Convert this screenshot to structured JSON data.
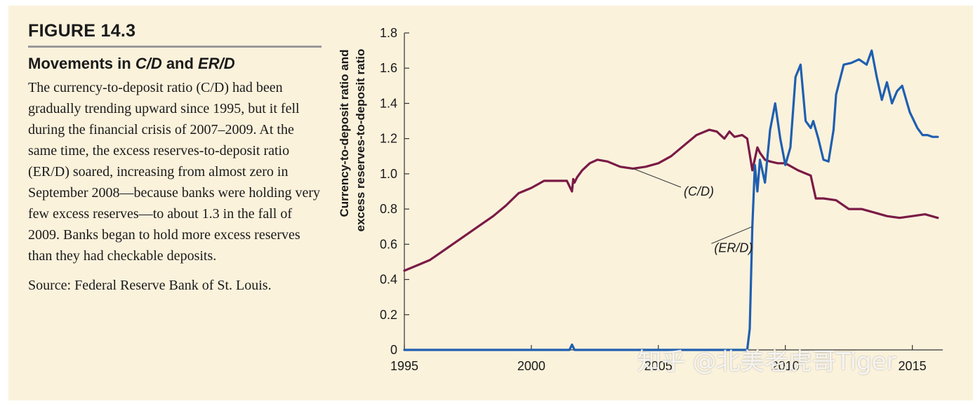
{
  "figure": {
    "label": "FIGURE 14.3",
    "title_prefix": "Movements in ",
    "title_cd": "C/D",
    "title_and": " and ",
    "title_erd": "ER/D",
    "body": "The currency-to-deposit ratio (C/D) had been gradually trending upward since 1995, but it fell during the financial crisis of 2007–2009. At the same time, the excess reserves-to-deposit ratio (ER/D) soared, increasing from almost zero in September 2008—because banks were holding very few excess reserves—to about 1.3 in the fall of 2009. Banks began to hold more excess reserves than they had checkable deposits.",
    "source": "Source: Federal Reserve Bank of St. Louis."
  },
  "watermark": "知乎 @北美老虎哥Tiger",
  "colors": {
    "cd": "#7a1a46",
    "erd": "#1f5fb0",
    "background": "#fbf2dc"
  },
  "chart_data": {
    "type": "line",
    "ylabel_line1": "Currency-to-deposit ratio and",
    "ylabel_line2": "excess reserves-to-deposit ratio",
    "xlim": [
      1995,
      2016.2
    ],
    "ylim": [
      0,
      1.8
    ],
    "yticks": [
      0,
      0.2,
      0.4,
      0.6,
      0.8,
      1.0,
      1.2,
      1.4,
      1.6,
      1.8
    ],
    "ytick_labels": [
      "0",
      "0.2",
      "0.4",
      "0.6",
      "0.8",
      "1.0",
      "1.2",
      "1.4",
      "1.6",
      "1.8"
    ],
    "xticks": [
      1995,
      2000,
      2005,
      2010,
      2015
    ],
    "xtick_labels": [
      "1995",
      "2000",
      "2005",
      "2010",
      "2015"
    ],
    "annotations": [
      {
        "text": "(C/D)",
        "series": "C/D",
        "x": 2004.0,
        "y": 1.03,
        "label_x": 2006.0,
        "label_y": 0.9
      },
      {
        "text": "(ER/D)",
        "series": "ER/D",
        "x": 2008.7,
        "y": 0.7,
        "label_x": 2007.2,
        "label_y": 0.58
      }
    ],
    "series": [
      {
        "name": "C/D",
        "x": [
          1995.0,
          1995.5,
          1996.0,
          1996.5,
          1997.0,
          1997.5,
          1998.0,
          1998.5,
          1999.0,
          1999.5,
          2000.0,
          2000.5,
          2001.0,
          2001.4,
          2001.6,
          2001.65,
          2001.7,
          2001.8,
          2002.0,
          2002.3,
          2002.6,
          2003.0,
          2003.5,
          2004.0,
          2004.5,
          2005.0,
          2005.5,
          2006.0,
          2006.5,
          2007.0,
          2007.3,
          2007.6,
          2007.8,
          2008.0,
          2008.3,
          2008.5,
          2008.7,
          2008.9,
          2009.0,
          2009.2,
          2009.4,
          2009.7,
          2010.0,
          2010.5,
          2011.0,
          2011.2,
          2011.5,
          2012.0,
          2012.5,
          2013.0,
          2013.5,
          2014.0,
          2014.5,
          2015.0,
          2015.5,
          2016.0
        ],
        "values": [
          0.45,
          0.48,
          0.51,
          0.56,
          0.61,
          0.66,
          0.71,
          0.76,
          0.82,
          0.89,
          0.92,
          0.96,
          0.96,
          0.96,
          0.9,
          0.97,
          0.95,
          0.98,
          1.02,
          1.06,
          1.08,
          1.07,
          1.04,
          1.03,
          1.04,
          1.06,
          1.1,
          1.16,
          1.22,
          1.25,
          1.24,
          1.2,
          1.24,
          1.21,
          1.22,
          1.2,
          1.02,
          1.15,
          1.12,
          1.08,
          1.07,
          1.06,
          1.06,
          1.02,
          0.99,
          0.86,
          0.86,
          0.85,
          0.8,
          0.8,
          0.78,
          0.76,
          0.75,
          0.76,
          0.77,
          0.75
        ]
      },
      {
        "name": "ER/D",
        "x": [
          1995.0,
          1998.0,
          2001.5,
          2001.6,
          2001.7,
          2003.0,
          2005.0,
          2007.0,
          2008.5,
          2008.6,
          2008.7,
          2008.8,
          2008.9,
          2009.0,
          2009.2,
          2009.4,
          2009.6,
          2009.8,
          2010.0,
          2010.2,
          2010.4,
          2010.6,
          2010.8,
          2011.0,
          2011.1,
          2011.3,
          2011.5,
          2011.7,
          2011.9,
          2012.0,
          2012.3,
          2012.6,
          2012.9,
          2013.2,
          2013.4,
          2013.6,
          2013.8,
          2014.0,
          2014.2,
          2014.4,
          2014.6,
          2014.8,
          2014.9,
          2015.0,
          2015.2,
          2015.4,
          2015.6,
          2015.8,
          2016.0
        ],
        "values": [
          0.0,
          0.0,
          0.0,
          0.03,
          0.0,
          0.0,
          0.0,
          0.0,
          0.0,
          0.12,
          0.7,
          1.05,
          0.9,
          1.08,
          0.95,
          1.25,
          1.4,
          1.2,
          1.05,
          1.15,
          1.55,
          1.62,
          1.3,
          1.26,
          1.3,
          1.2,
          1.08,
          1.07,
          1.25,
          1.45,
          1.62,
          1.63,
          1.65,
          1.62,
          1.7,
          1.55,
          1.42,
          1.52,
          1.4,
          1.47,
          1.5,
          1.4,
          1.35,
          1.32,
          1.26,
          1.22,
          1.22,
          1.21,
          1.21
        ]
      }
    ]
  }
}
